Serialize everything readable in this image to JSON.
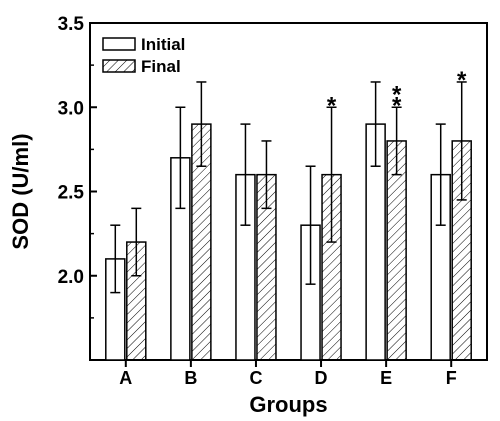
{
  "chart_data": {
    "type": "bar",
    "xlabel": "Groups",
    "ylabel": "SOD (U/ml)",
    "categories": [
      "A",
      "B",
      "C",
      "D",
      "E",
      "F"
    ],
    "ylim": [
      1.5,
      3.5
    ],
    "yticks": [
      "2.0",
      "2.5",
      "3.0",
      "3.5"
    ],
    "legend_position": "top-left",
    "series": [
      {
        "name": "Initial",
        "pattern": "plain",
        "values": [
          2.1,
          2.7,
          2.6,
          2.3,
          2.9,
          2.6
        ],
        "error": [
          0.2,
          0.3,
          0.3,
          0.35,
          0.25,
          0.3
        ]
      },
      {
        "name": "Final",
        "pattern": "hatched",
        "values": [
          2.2,
          2.9,
          2.6,
          2.6,
          2.8,
          2.8
        ],
        "error": [
          0.2,
          0.25,
          0.2,
          0.4,
          0.2,
          0.35
        ]
      }
    ],
    "annotations": [
      {
        "category": "D",
        "series": "Final",
        "text": "*"
      },
      {
        "category": "E",
        "series": "Final",
        "text": "**"
      },
      {
        "category": "F",
        "series": "Final",
        "text": "*"
      }
    ],
    "colors": {
      "axis": "#000000",
      "bar_fill": "#ffffff",
      "hatch": "#000000"
    }
  }
}
